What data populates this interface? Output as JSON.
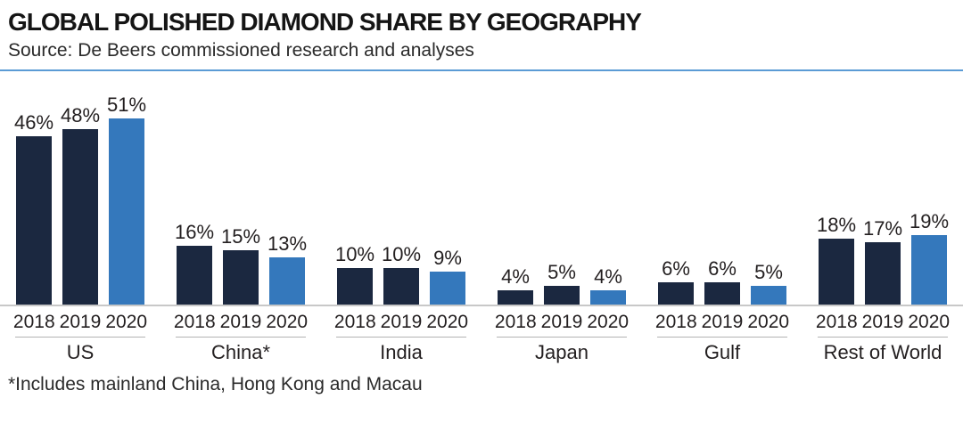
{
  "header": {
    "title": "GLOBAL POLISHED DIAMOND SHARE BY GEOGRAPHY",
    "source": "Source: De Beers commissioned research and analyses"
  },
  "footnote": "*Includes mainland China, Hong Kong and Macau",
  "colors": {
    "bar_2018": "#1b2840",
    "bar_2019": "#1b2840",
    "bar_2020": "#3478bc",
    "divider_blue": "#5b9bd5",
    "baseline_gray": "#c8c8c8",
    "underline_gray": "#b3b3b3",
    "text": "#231f20"
  },
  "chart_data": {
    "type": "bar",
    "title": "GLOBAL POLISHED DIAMOND SHARE BY GEOGRAPHY",
    "subtitle": "Source: De Beers commissioned research and analyses",
    "unit": "%",
    "categories": [
      "US",
      "China*",
      "India",
      "Japan",
      "Gulf",
      "Rest of World"
    ],
    "series": [
      {
        "name": "2018",
        "values": [
          46,
          16,
          10,
          4,
          6,
          18
        ]
      },
      {
        "name": "2019",
        "values": [
          48,
          15,
          10,
          5,
          6,
          17
        ]
      },
      {
        "name": "2020",
        "values": [
          51,
          13,
          9,
          4,
          5,
          19
        ]
      }
    ],
    "value_labels": true,
    "ylim": [
      0,
      55
    ],
    "grid": false,
    "legend": false,
    "annotations": [
      "*Includes mainland China, Hong Kong and Macau"
    ]
  }
}
